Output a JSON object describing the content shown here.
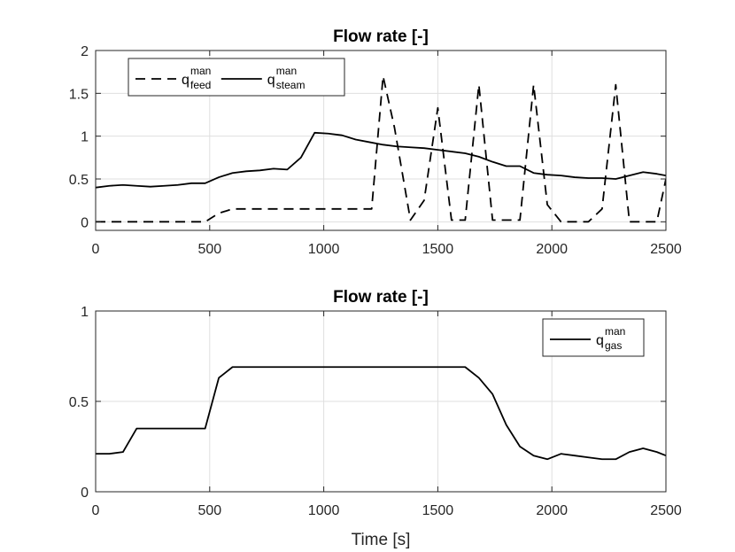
{
  "chart_data": [
    {
      "type": "line",
      "title": "Flow rate [-]",
      "xlabel": "",
      "ylabel": "",
      "xlim": [
        0,
        2500
      ],
      "ylim": [
        -0.1,
        2
      ],
      "grid": true,
      "xticks": [
        0,
        500,
        1000,
        1500,
        2000,
        2500
      ],
      "xtick_labels": [
        "0",
        "500",
        "1000",
        "1500",
        "2000",
        "2500"
      ],
      "yticks": [
        0,
        0.5,
        1,
        1.5,
        2
      ],
      "ytick_labels": [
        "0",
        "0.5",
        "1",
        "1.5",
        "2"
      ],
      "legend_position": "top-left",
      "series": [
        {
          "name": "q feed man",
          "legend_base": "q",
          "legend_sup": "man",
          "legend_sub": "feed",
          "style": "dashed",
          "x": [
            0,
            480,
            540,
            600,
            660,
            1200,
            1210,
            1260,
            1310,
            1380,
            1440,
            1500,
            1560,
            1620,
            1680,
            1740,
            1800,
            1860,
            1920,
            1980,
            2040,
            2160,
            2220,
            2280,
            2340,
            2400,
            2460,
            2500
          ],
          "y": [
            0,
            0,
            0.1,
            0.15,
            0.15,
            0.15,
            0.15,
            1.7,
            1.1,
            0.02,
            0.25,
            1.33,
            0.02,
            0.02,
            1.6,
            0.02,
            0.02,
            0.02,
            1.6,
            0.2,
            0.0,
            0.0,
            0.15,
            1.6,
            0.0,
            0.0,
            0.0,
            0.5
          ]
        },
        {
          "name": "q steam man",
          "legend_base": "q",
          "legend_sup": "man",
          "legend_sub": "steam",
          "style": "solid",
          "x": [
            0,
            60,
            120,
            180,
            240,
            300,
            360,
            420,
            480,
            540,
            600,
            660,
            720,
            780,
            840,
            900,
            960,
            1020,
            1080,
            1140,
            1200,
            1260,
            1320,
            1380,
            1440,
            1500,
            1560,
            1620,
            1680,
            1740,
            1800,
            1860,
            1920,
            1980,
            2040,
            2100,
            2160,
            2220,
            2280,
            2340,
            2400,
            2460,
            2500
          ],
          "y": [
            0.4,
            0.42,
            0.43,
            0.42,
            0.41,
            0.42,
            0.43,
            0.45,
            0.45,
            0.52,
            0.57,
            0.59,
            0.6,
            0.62,
            0.61,
            0.75,
            1.04,
            1.03,
            1.01,
            0.96,
            0.93,
            0.9,
            0.88,
            0.87,
            0.86,
            0.84,
            0.82,
            0.8,
            0.76,
            0.7,
            0.65,
            0.65,
            0.57,
            0.55,
            0.54,
            0.52,
            0.51,
            0.51,
            0.5,
            0.54,
            0.58,
            0.56,
            0.54
          ]
        }
      ]
    },
    {
      "type": "line",
      "title": "Flow rate [-]",
      "xlabel": "Time [s]",
      "ylabel": "",
      "xlim": [
        0,
        2500
      ],
      "ylim": [
        0,
        1
      ],
      "grid": true,
      "xticks": [
        0,
        500,
        1000,
        1500,
        2000,
        2500
      ],
      "xtick_labels": [
        "0",
        "500",
        "1000",
        "1500",
        "2000",
        "2500"
      ],
      "yticks": [
        0,
        0.5,
        1
      ],
      "ytick_labels": [
        "0",
        "0.5",
        "1"
      ],
      "legend_position": "top-right",
      "series": [
        {
          "name": "q gas man",
          "legend_base": "q",
          "legend_sup": "man",
          "legend_sub": "gas",
          "style": "solid",
          "x": [
            0,
            60,
            120,
            180,
            240,
            300,
            360,
            420,
            480,
            540,
            600,
            660,
            900,
            1200,
            1500,
            1620,
            1680,
            1740,
            1800,
            1860,
            1920,
            1980,
            2040,
            2100,
            2160,
            2220,
            2280,
            2340,
            2400,
            2460,
            2500
          ],
          "y": [
            0.21,
            0.21,
            0.22,
            0.35,
            0.35,
            0.35,
            0.35,
            0.35,
            0.35,
            0.63,
            0.69,
            0.69,
            0.69,
            0.69,
            0.69,
            0.69,
            0.63,
            0.54,
            0.37,
            0.25,
            0.2,
            0.18,
            0.21,
            0.2,
            0.19,
            0.18,
            0.18,
            0.22,
            0.24,
            0.22,
            0.2
          ]
        }
      ]
    }
  ]
}
